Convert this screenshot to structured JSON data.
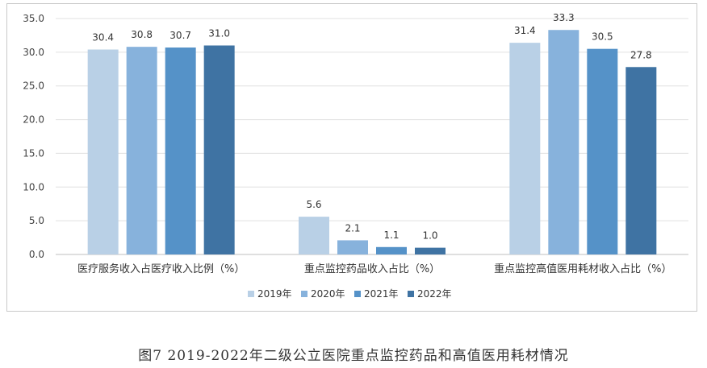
{
  "chart_data": {
    "type": "bar",
    "categories": [
      "医疗服务收入占医疗收入比例（%）",
      "重点监控药品收入占比（%）",
      "重点监控高值医用耗材收入占比（%）"
    ],
    "series": [
      {
        "name": "2019年",
        "values": [
          30.4,
          5.6,
          31.4
        ],
        "color": "#b9d0e6"
      },
      {
        "name": "2020年",
        "values": [
          30.8,
          2.1,
          33.3
        ],
        "color": "#87b2dc"
      },
      {
        "name": "2021年",
        "values": [
          30.7,
          1.1,
          30.5
        ],
        "color": "#5592c8"
      },
      {
        "name": "2022年",
        "values": [
          31.0,
          1.0,
          27.8
        ],
        "color": "#3f73a3"
      }
    ],
    "yticks": [
      "0.0",
      "5.0",
      "10.0",
      "15.0",
      "20.0",
      "25.0",
      "30.0",
      "35.0"
    ],
    "ylim": [
      0,
      35
    ],
    "grid": true,
    "legend_position": "bottom",
    "xlabel": "",
    "ylabel": ""
  },
  "caption": "图7 2019-2022年二级公立医院重点监控药品和高值医用耗材情况"
}
